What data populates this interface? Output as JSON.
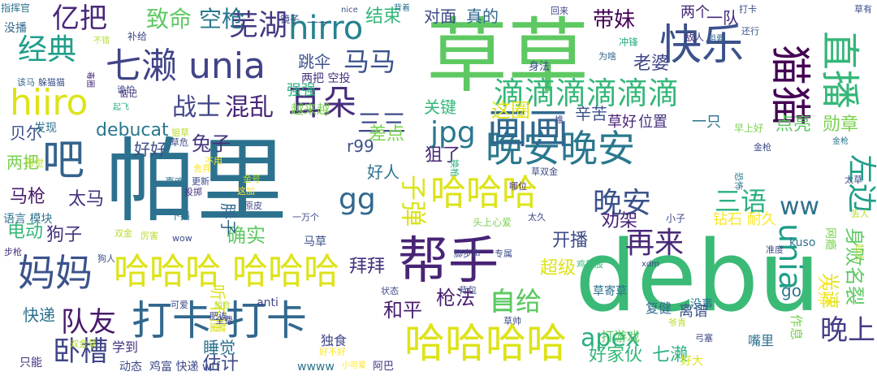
{
  "words": [
    {
      "text": "帕里",
      "color": "#2c728e"
    },
    {
      "text": "debu",
      "color": "#3aba76"
    },
    {
      "text": "草草",
      "color": "#5ec962"
    },
    {
      "text": "帮手",
      "color": "#482475"
    },
    {
      "text": "七濑 unia",
      "color": "#414487"
    },
    {
      "text": "快乐",
      "color": "#3b528b"
    },
    {
      "text": "晚安晚安",
      "color": "#2a788e"
    },
    {
      "text": "打卡 打卡",
      "color": "#31688e"
    },
    {
      "text": "哈哈哈哈",
      "color": "#dde318"
    },
    {
      "text": "哈哈哈 哈哈哈",
      "color": "#dde318"
    },
    {
      "text": "妈妈",
      "color": "#3b528b"
    },
    {
      "text": "画画",
      "color": "#31688e"
    },
    {
      "text": "猫猫",
      "color": "#440154"
    },
    {
      "text": "直播",
      "color": "#35b779"
    },
    {
      "text": "耳朵",
      "color": "#472d7b"
    },
    {
      "text": "hiiro",
      "color": "#dde318"
    },
    {
      "text": "吧",
      "color": "#33638d"
    },
    {
      "text": "unia",
      "color": "#1f9e89"
    },
    {
      "text": "滴滴滴滴滴滴",
      "color": "#35b779"
    },
    {
      "text": "哈哈哈",
      "color": "#dde318"
    },
    {
      "text": "hirro",
      "color": "#26828e"
    },
    {
      "text": "三三",
      "color": "#3e4a89"
    },
    {
      "text": "芜湖",
      "color": "#443983"
    },
    {
      "text": "经典",
      "color": "#1f9e89"
    },
    {
      "text": "亿把",
      "color": "#482878"
    },
    {
      "text": "战士",
      "color": "#404688"
    },
    {
      "text": "混乱",
      "color": "#482677"
    },
    {
      "text": "队友",
      "color": "#481a6c"
    },
    {
      "text": "卧槽",
      "color": "#404688"
    },
    {
      "text": "晚安",
      "color": "#3b528b"
    },
    {
      "text": "再来",
      "color": "#482878"
    },
    {
      "text": "白给",
      "color": "#5ec962"
    },
    {
      "text": "晚上",
      "color": "#433e85"
    },
    {
      "text": "apex",
      "color": "#2ab07f"
    },
    {
      "text": "左边",
      "color": "#1f9e89"
    },
    {
      "text": "jpg",
      "color": "#2a788e"
    },
    {
      "text": "三语",
      "color": "#2ab07f"
    },
    {
      "text": "gg",
      "color": "#31688e"
    },
    {
      "text": "子弹",
      "color": "#dde318"
    },
    {
      "text": "马马",
      "color": "#3b528b"
    },
    {
      "text": "致命",
      "color": "#5ec962"
    },
    {
      "text": "空枪",
      "color": "#2a788e"
    },
    {
      "text": "结束",
      "color": "#35b779"
    },
    {
      "text": "带妹",
      "color": "#440154"
    },
    {
      "text": "对面",
      "color": "#3e4a89"
    },
    {
      "text": "真的",
      "color": "#31688e"
    },
    {
      "text": "这圈",
      "color": "#dde318"
    },
    {
      "text": "辛苦",
      "color": "#3b528b"
    },
    {
      "text": "点亮",
      "color": "#5ec962"
    },
    {
      "text": "勋章",
      "color": "#7ad151"
    },
    {
      "text": "老婆",
      "color": "#404688"
    },
    {
      "text": "关键",
      "color": "#35b779"
    },
    {
      "text": "兔子",
      "color": "#46327e"
    },
    {
      "text": "狙了",
      "color": "#482878"
    },
    {
      "text": "好人",
      "color": "#2c728e"
    },
    {
      "text": "枪法",
      "color": "#481f70"
    },
    {
      "text": "自给",
      "color": "#5ec962"
    },
    {
      "text": "拜拜",
      "color": "#46327e"
    },
    {
      "text": "劝架",
      "color": "#482475"
    },
    {
      "text": "开播",
      "color": "#3e4a89"
    },
    {
      "text": "马枪",
      "color": "#481a6c"
    },
    {
      "text": "太马",
      "color": "#46327e"
    },
    {
      "text": "电动",
      "color": "#35b779"
    },
    {
      "text": "狗子",
      "color": "#46327e"
    },
    {
      "text": "确实",
      "color": "#5ec962"
    },
    {
      "text": "快递",
      "color": "#2c728e"
    },
    {
      "text": "睡觉",
      "color": "#2c728e"
    },
    {
      "text": "估计",
      "color": "#3e4a89"
    },
    {
      "text": "和平",
      "color": "#481f70"
    },
    {
      "text": "ww",
      "color": "#2c728e"
    },
    {
      "text": "r99",
      "color": "#3b528b"
    },
    {
      "text": "debucat",
      "color": "#2a788e"
    },
    {
      "text": "差点",
      "color": "#7ad151"
    },
    {
      "text": "好好",
      "color": "#3e4a89"
    },
    {
      "text": "贝尔",
      "color": "#3b528b"
    },
    {
      "text": "两把",
      "color": "#7ad151"
    },
    {
      "text": "超级",
      "color": "#dde318"
    },
    {
      "text": "好家伙",
      "color": "#35b779"
    },
    {
      "text": "七濑",
      "color": "#2ab07f"
    },
    {
      "text": "身败名裂",
      "color": "#5ec962"
    },
    {
      "text": "光速",
      "color": "#dde318"
    },
    {
      "text": "草好",
      "color": "#482475"
    },
    {
      "text": "位置",
      "color": "#46327e"
    },
    {
      "text": "一只",
      "color": "#2c728e"
    },
    {
      "text": "两个",
      "color": "#482878"
    },
    {
      "text": "一队",
      "color": "#482878"
    },
    {
      "text": "跳伞",
      "color": "#3b528b"
    },
    {
      "text": "强强",
      "color": "#2ab07f"
    },
    {
      "text": "越来越",
      "color": "#7ad151"
    },
    {
      "text": "两把 空投",
      "color": "#46327e"
    },
    {
      "text": "发现",
      "color": "#2c728e"
    },
    {
      "text": "网瘾",
      "color": "#7ad151"
    },
    {
      "text": "go",
      "color": "#2a788e"
    },
    {
      "text": "离谱",
      "color": "#3b528b"
    },
    {
      "text": "复健",
      "color": "#31688e"
    },
    {
      "text": "没事",
      "color": "#2c728e"
    },
    {
      "text": "作息",
      "color": "#7ad151"
    },
    {
      "text": "大师",
      "color": "#fde725"
    },
    {
      "text": "打游戏",
      "color": "#5ec962"
    },
    {
      "text": "草寄草",
      "color": "#2c728e"
    },
    {
      "text": "嘴里",
      "color": "#2c728e"
    },
    {
      "text": "独食",
      "color": "#404688"
    },
    {
      "text": "学到",
      "color": "#46327e"
    },
    {
      "text": "wwww",
      "color": "#2c728e"
    },
    {
      "text": "钻石 耐久",
      "color": "#fde725"
    },
    {
      "text": "听不懂",
      "color": "#dde318"
    },
    {
      "text": "胖子",
      "color": "#31688e"
    },
    {
      "text": "马草",
      "color": "#3b528b"
    },
    {
      "text": "语言 模块",
      "color": "#2c728e"
    },
    {
      "text": "只能",
      "color": "#46327e"
    },
    {
      "text": "动态",
      "color": "#3e4a89"
    },
    {
      "text": "鸡富 快递 wtf",
      "color": "#3e4a89"
    },
    {
      "text": "好大",
      "color": "#dde318"
    },
    {
      "text": "anti",
      "color": "#404688"
    },
    {
      "text": "nice",
      "color": "#3b528b"
    },
    {
      "text": "镜子",
      "color": "#3e4a89"
    },
    {
      "text": "指挥官",
      "color": "#2c728e"
    },
    {
      "text": "没播",
      "color": "#31688e"
    },
    {
      "text": "一一",
      "color": "#31688e"
    },
    {
      "text": "补给",
      "color": "#3e4a89"
    },
    {
      "text": "躲猫猫",
      "color": "#3b528b"
    },
    {
      "text": "该马",
      "color": "#31688e"
    },
    {
      "text": "诡怕",
      "color": "#3e4a89"
    },
    {
      "text": "冲锋",
      "color": "#2ab07f"
    },
    {
      "text": "敌人",
      "color": "#46327e"
    },
    {
      "text": "还行",
      "color": "#3b528b"
    },
    {
      "text": "为啥",
      "color": "#31688e"
    },
    {
      "text": "身法",
      "color": "#3e4a89"
    },
    {
      "text": "回来",
      "color": "#3e4a89"
    },
    {
      "text": "背着",
      "color": "#2c728e"
    },
    {
      "text": "狙要",
      "color": "#31688e"
    },
    {
      "text": "草有",
      "color": "#3e4a89"
    },
    {
      "text": "不错",
      "color": "#b5de2b"
    },
    {
      "text": "毒圈",
      "color": "#482878"
    },
    {
      "text": "惦记",
      "color": "#46327e"
    },
    {
      "text": "起飞",
      "color": "#2ab07f"
    },
    {
      "text": "一堆",
      "color": "#3e4a89"
    },
    {
      "text": "狙草",
      "color": "#b5de2b"
    },
    {
      "text": "草危",
      "color": "#3e4a89"
    },
    {
      "text": "早上好",
      "color": "#7ad151"
    },
    {
      "text": "感觉",
      "color": "#b5de2b"
    },
    {
      "text": "喜欢",
      "color": "#2c728e"
    },
    {
      "text": "舍弃",
      "color": "#fde725"
    },
    {
      "text": "不用",
      "color": "#fde725"
    },
    {
      "text": "更新",
      "color": "#3e4a89"
    },
    {
      "text": "这加",
      "color": "#fde725"
    },
    {
      "text": "金号",
      "color": "#b5de2b"
    },
    {
      "text": "换枪",
      "color": "#2ab07f"
    },
    {
      "text": "哪位",
      "color": "#46327e"
    },
    {
      "text": "金枪",
      "color": "#3e4a89"
    },
    {
      "text": "太草",
      "color": "#3e4a89"
    },
    {
      "text": "草双金",
      "color": "#3e4a89"
    },
    {
      "text": "恐怖",
      "color": "#2c728e"
    },
    {
      "text": "投掷",
      "color": "#46327e"
    },
    {
      "text": "原皮",
      "color": "#3e4a89"
    },
    {
      "text": "一万个",
      "color": "#3e4a89"
    },
    {
      "text": "下播",
      "color": "#2c728e"
    },
    {
      "text": "双金",
      "color": "#b5de2b"
    },
    {
      "text": "厉害",
      "color": "#b5de2b"
    },
    {
      "text": "wow",
      "color": "#3e4a89"
    },
    {
      "text": "狗人",
      "color": "#3e4a89"
    },
    {
      "text": "头上心爱",
      "color": "#7ad151"
    },
    {
      "text": "脚步声",
      "color": "#3e4a89"
    },
    {
      "text": "专属",
      "color": "#3e4a89"
    },
    {
      "text": "太久",
      "color": "#3e4a89"
    },
    {
      "text": "小子",
      "color": "#3e4a89"
    },
    {
      "text": "丢人",
      "color": "#b5de2b"
    },
    {
      "text": "准度",
      "color": "#3e4a89"
    },
    {
      "text": "起大",
      "color": "#b5de2b"
    },
    {
      "text": "鸡屁股",
      "color": "#35b779"
    },
    {
      "text": "可爱",
      "color": "#3e4a89"
    },
    {
      "text": "状态",
      "color": "#3e4a89"
    },
    {
      "text": "背包",
      "color": "#3e4a89"
    },
    {
      "text": "全费",
      "color": "#3e4a89"
    },
    {
      "text": "肥诶",
      "color": "#3e4a89"
    },
    {
      "text": "组合",
      "color": "#b5de2b"
    },
    {
      "text": "草帅",
      "color": "#3e4a89"
    },
    {
      "text": "爷青",
      "color": "#b5de2b"
    },
    {
      "text": "弓塞",
      "color": "#3e4a89"
    },
    {
      "text": "好不好",
      "color": "#fde725"
    },
    {
      "text": "小可爱",
      "color": "#fde725"
    },
    {
      "text": "阿巴",
      "color": "#46327e"
    },
    {
      "text": "xdm",
      "color": "#3e4a89"
    },
    {
      "text": "kuso",
      "color": "#2c728e"
    },
    {
      "text": "步枪",
      "color": "#46327e"
    },
    {
      "text": "双金草",
      "color": "#b5de2b"
    },
    {
      "text": "打卡",
      "color": "#3e4a89"
    },
    {
      "text": "金枪",
      "color": "#2c728e"
    }
  ]
}
